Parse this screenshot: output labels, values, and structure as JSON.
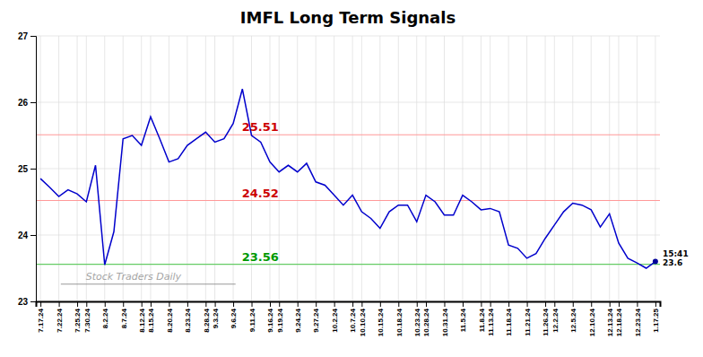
{
  "chart_data": {
    "type": "line",
    "title": "IMFL Long Term Signals",
    "categories": [
      "7.17.24",
      null,
      "7.22.24",
      null,
      "7.25.24",
      "7.30.24",
      null,
      "8.2.24",
      null,
      "8.7.24",
      null,
      "8.12.24",
      "8.15.24",
      null,
      "8.20.24",
      null,
      "8.23.24",
      null,
      "8.28.24",
      "9.3.24",
      null,
      "9.6.24",
      null,
      "9.11.24",
      null,
      "9.16.24",
      "9.19.24",
      null,
      "9.24.24",
      null,
      "9.27.24",
      null,
      "10.2.24",
      null,
      "10.7.24",
      "10.10.24",
      null,
      "10.15.24",
      null,
      "10.18.24",
      null,
      "10.23.24",
      "10.28.24",
      null,
      "10.31.24",
      null,
      "11.5.24",
      null,
      "11.8.24",
      "11.13.24",
      null,
      "11.18.24",
      null,
      "11.21.24",
      null,
      "11.26.24",
      "12.2.24",
      null,
      "12.5.24",
      null,
      "12.10.24",
      null,
      "12.13.24",
      "12.18.24",
      null,
      "12.23.24",
      null,
      "1.17.25"
    ],
    "values": [
      24.85,
      24.72,
      24.58,
      24.68,
      24.62,
      24.5,
      25.05,
      23.55,
      24.05,
      25.45,
      25.5,
      25.35,
      25.78,
      25.45,
      25.1,
      25.15,
      25.35,
      25.45,
      25.55,
      25.4,
      25.45,
      25.68,
      26.2,
      25.5,
      25.4,
      25.1,
      24.95,
      25.05,
      24.95,
      25.08,
      24.8,
      24.75,
      24.6,
      24.45,
      24.6,
      24.35,
      24.25,
      24.1,
      24.35,
      24.45,
      24.45,
      24.2,
      24.6,
      24.5,
      24.3,
      24.3,
      24.6,
      24.5,
      24.38,
      24.4,
      24.35,
      23.85,
      23.8,
      23.65,
      23.72,
      23.95,
      24.15,
      24.35,
      24.48,
      24.45,
      24.38,
      24.12,
      24.32,
      23.88,
      23.65,
      23.58,
      23.5,
      23.6
    ],
    "color": "#0000cc",
    "hlines": [
      {
        "value": 25.51,
        "color": "#ff9999",
        "label": "25.51",
        "label_color": "#cc0000"
      },
      {
        "value": 24.52,
        "color": "#ff9999",
        "label": "24.52",
        "label_color": "#cc0000"
      },
      {
        "value": 23.56,
        "color": "#66cc66",
        "label": "23.56",
        "label_color": "#009900"
      }
    ],
    "last_point": {
      "color": "#000099",
      "label": "15:41",
      "value": 23.6
    },
    "watermark": "Stock Traders Daily",
    "ylim": [
      23.0,
      27.0
    ],
    "yticks": [
      23,
      24,
      25,
      26,
      27
    ],
    "grid": true
  }
}
